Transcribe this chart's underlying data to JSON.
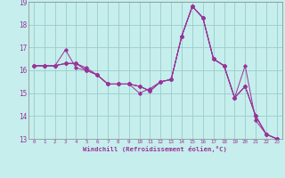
{
  "xlabel": "Windchill (Refroidissement éolien,°C)",
  "xlim": [
    -0.5,
    23.5
  ],
  "ylim": [
    13,
    19
  ],
  "yticks": [
    13,
    14,
    15,
    16,
    17,
    18,
    19
  ],
  "xticks": [
    0,
    1,
    2,
    3,
    4,
    5,
    6,
    7,
    8,
    9,
    10,
    11,
    12,
    13,
    14,
    15,
    16,
    17,
    18,
    19,
    20,
    21,
    22,
    23
  ],
  "background_color": "#c5eeec",
  "line_color": "#993399",
  "grid_color": "#99cccc",
  "series": [
    [
      16.2,
      16.2,
      16.2,
      16.3,
      16.3,
      16.1,
      15.8,
      15.4,
      15.4,
      15.4,
      15.3,
      15.1,
      15.5,
      15.6,
      17.5,
      18.8,
      18.3,
      16.5,
      16.2,
      14.8,
      15.3,
      14.0,
      13.2,
      13.0
    ],
    [
      16.2,
      16.2,
      16.2,
      16.9,
      16.1,
      16.0,
      15.8,
      15.4,
      15.4,
      15.4,
      15.3,
      15.1,
      15.5,
      15.6,
      17.5,
      18.8,
      18.3,
      16.5,
      16.2,
      14.8,
      15.3,
      14.0,
      13.2,
      13.0
    ],
    [
      16.2,
      16.2,
      16.2,
      16.3,
      16.3,
      16.0,
      15.8,
      15.4,
      15.4,
      15.4,
      15.0,
      15.2,
      15.5,
      15.6,
      17.5,
      18.8,
      18.3,
      16.5,
      16.2,
      14.8,
      15.3,
      14.0,
      13.2,
      13.0
    ],
    [
      16.2,
      16.2,
      16.2,
      16.3,
      16.3,
      16.0,
      15.8,
      15.4,
      15.4,
      15.4,
      15.3,
      15.1,
      15.5,
      15.6,
      17.5,
      18.8,
      18.3,
      16.5,
      16.2,
      14.8,
      16.2,
      13.8,
      13.2,
      13.0
    ]
  ]
}
